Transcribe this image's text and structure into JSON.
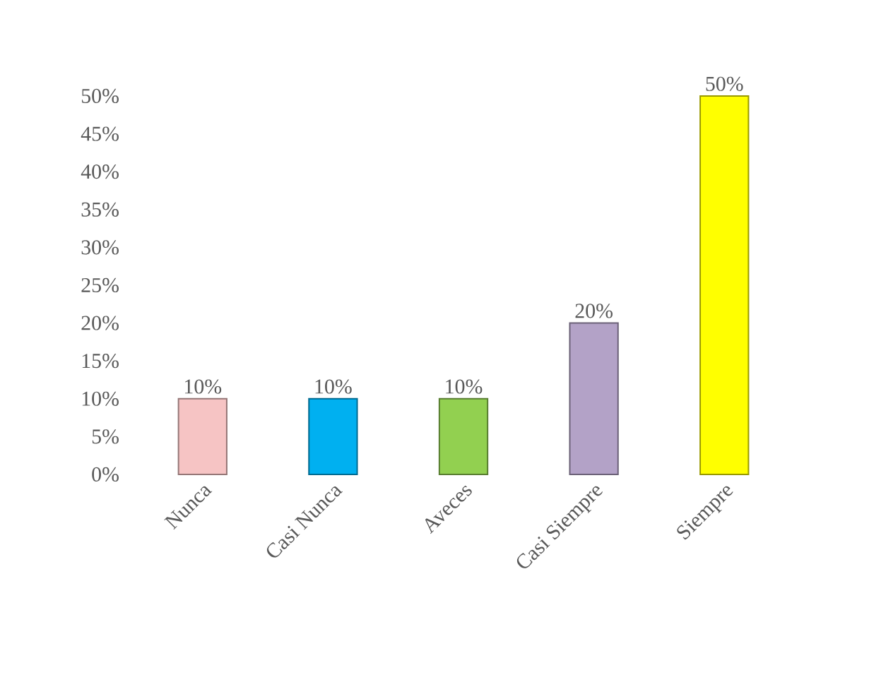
{
  "chart_data": {
    "type": "bar",
    "categories": [
      "Nunca",
      "Casi Nunca",
      "Aveces",
      "Casi Siempre",
      "Siempre"
    ],
    "values": [
      10,
      10,
      10,
      20,
      50
    ],
    "colors": [
      "#f6c4c4",
      "#00b0f0",
      "#92d050",
      "#b3a2c7",
      "#ffff00"
    ],
    "value_labels": [
      "10%",
      "10%",
      "10%",
      "20%",
      "50%"
    ],
    "ylim": [
      0,
      50
    ],
    "yticks": [
      {
        "value": 0,
        "label": "0%"
      },
      {
        "value": 5,
        "label": "5%"
      },
      {
        "value": 10,
        "label": "10%"
      },
      {
        "value": 15,
        "label": "15%"
      },
      {
        "value": 20,
        "label": "20%"
      },
      {
        "value": 25,
        "label": "25%"
      },
      {
        "value": 30,
        "label": "30%"
      },
      {
        "value": 35,
        "label": "35%"
      },
      {
        "value": 40,
        "label": "40%"
      },
      {
        "value": 45,
        "label": "45%"
      },
      {
        "value": 50,
        "label": "50%"
      }
    ],
    "grid": false
  }
}
